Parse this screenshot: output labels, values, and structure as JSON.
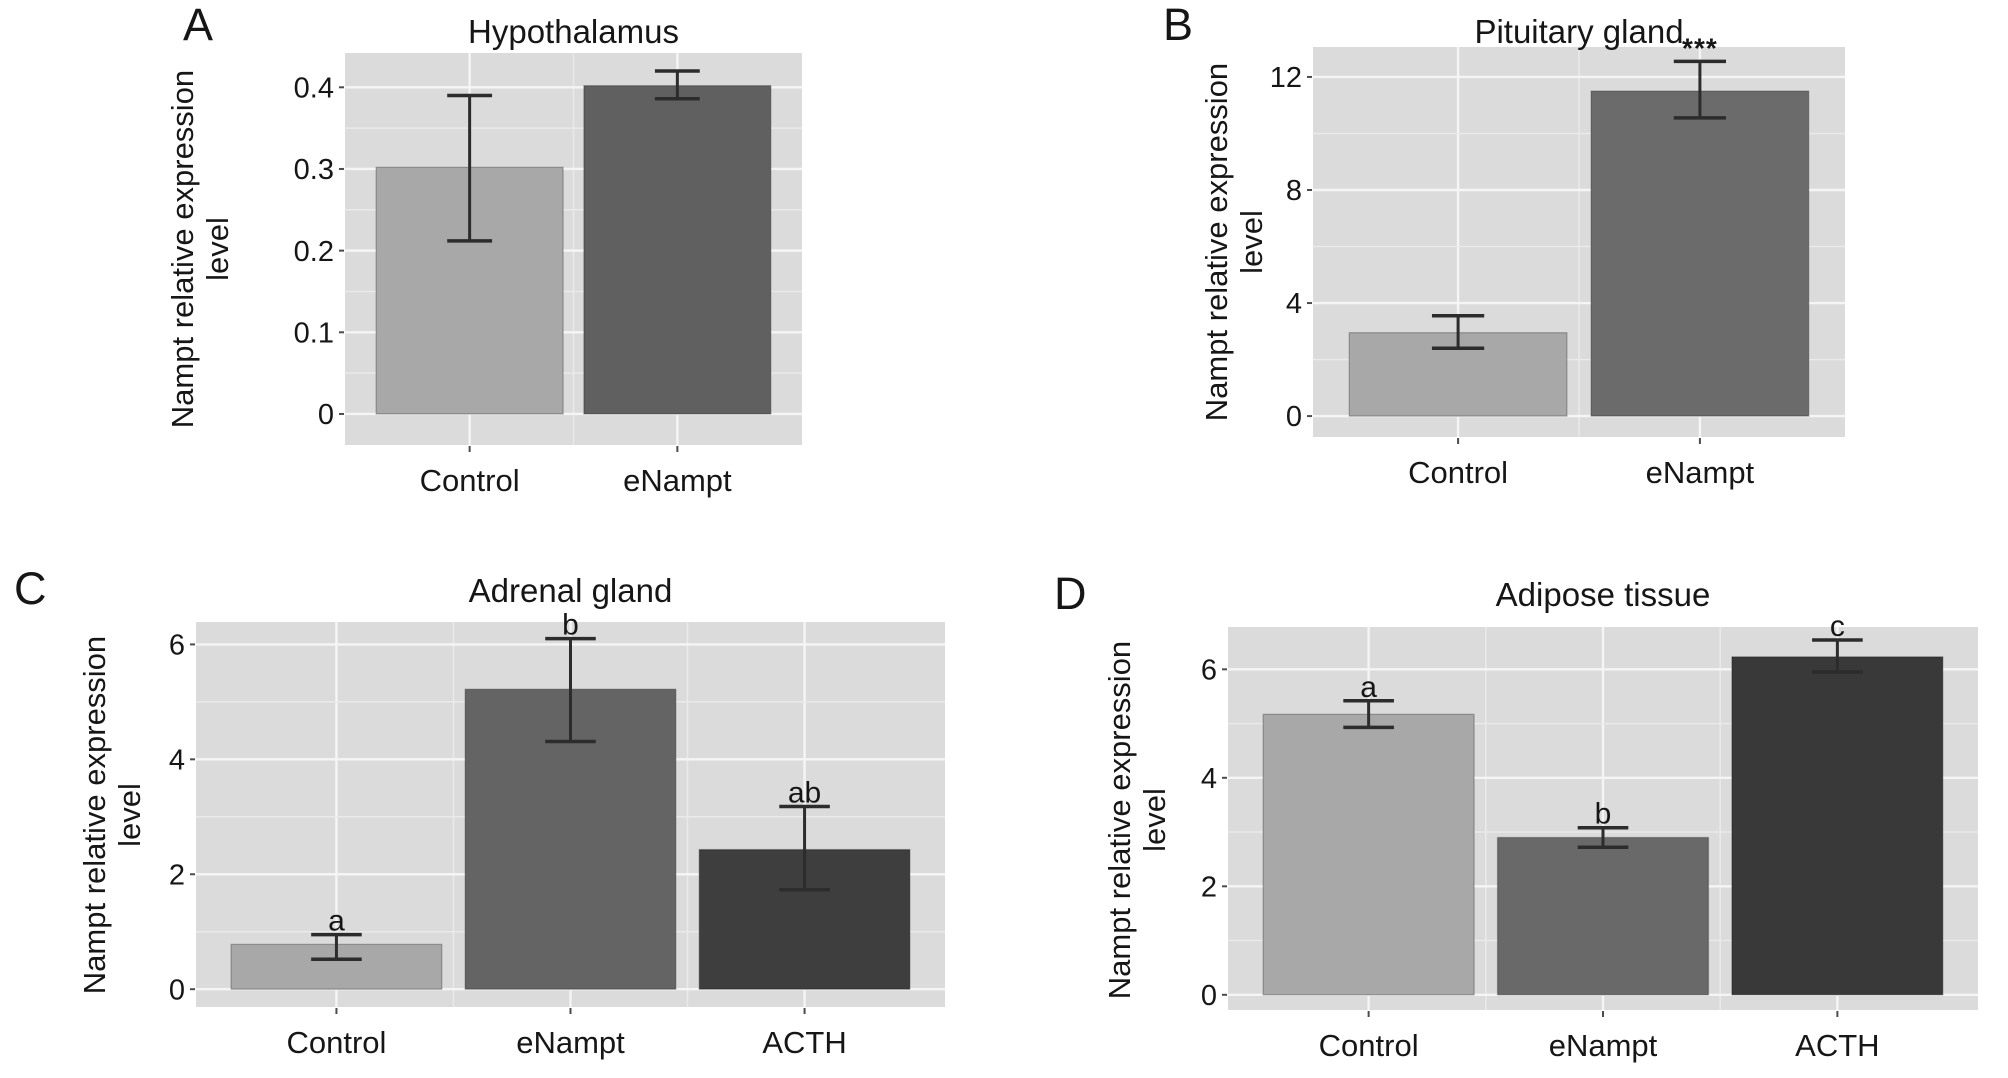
{
  "figure": {
    "ylabel_line1": "Nampt relative expression",
    "ylabel_line2": "level"
  },
  "colors": {
    "page_background": "#ffffff",
    "plot_background": "#dbdbdb",
    "grid_major": "#f5f5f5",
    "grid_minor": "#eaeaea",
    "bar_outline": "rgba(0,0,0,0.25)",
    "error_bar": "#2c2c2c",
    "tick_mark": "#4c4c4c",
    "text": "#161616"
  },
  "chart_data": [
    {
      "panel_label": "A",
      "type": "bar",
      "title": "Hypothalamus",
      "xlabel": "",
      "ylabel": "Nampt relative expression level",
      "categories": [
        "Control",
        "eNampt"
      ],
      "values": [
        0.302,
        0.402
      ],
      "error_low": [
        0.212,
        0.386
      ],
      "error_high": [
        0.39,
        0.42
      ],
      "annotations": [
        "",
        ""
      ],
      "bar_colors": [
        "#a8a8a8",
        "#606060"
      ],
      "yticks": [
        0,
        0.1,
        0.2,
        0.3,
        0.4
      ],
      "ytick_labels": [
        "0",
        "0.1",
        "0.2",
        "0.3",
        "0.4"
      ],
      "yminor": [
        0.05,
        0.15,
        0.25,
        0.35
      ],
      "ylim": [
        -0.038,
        0.442
      ],
      "grid": true,
      "legend": false
    },
    {
      "panel_label": "B",
      "type": "bar",
      "title": "Pituitary gland",
      "xlabel": "",
      "ylabel": "Nampt relative expression level",
      "categories": [
        "Control",
        "eNampt"
      ],
      "values": [
        2.95,
        11.5
      ],
      "error_low": [
        2.4,
        10.55
      ],
      "error_high": [
        3.55,
        12.55
      ],
      "annotations": [
        "",
        "***"
      ],
      "bar_colors": [
        "#a8a8a8",
        "#6b6b6b"
      ],
      "yticks": [
        0,
        4,
        8,
        12
      ],
      "ytick_labels": [
        "0",
        "4",
        "8",
        "12"
      ],
      "yminor": [
        2,
        6,
        10
      ],
      "ylim": [
        -0.74,
        13.06
      ],
      "grid": true,
      "legend": false
    },
    {
      "panel_label": "C",
      "type": "bar",
      "title": "Adrenal gland",
      "xlabel": "",
      "ylabel": "Nampt relative expression level",
      "categories": [
        "Control",
        "eNampt",
        "ACTH"
      ],
      "values": [
        0.78,
        5.22,
        2.43
      ],
      "error_low": [
        0.52,
        4.31,
        1.73
      ],
      "error_high": [
        0.95,
        6.1,
        3.18
      ],
      "annotations": [
        "a",
        "b",
        "ab"
      ],
      "bar_colors": [
        "#a8a8a8",
        "#646464",
        "#3e3e3e"
      ],
      "yticks": [
        0,
        2,
        4,
        6
      ],
      "ytick_labels": [
        "0",
        "2",
        "4",
        "6"
      ],
      "yminor": [
        1,
        3,
        5
      ],
      "ylim": [
        -0.31,
        6.39
      ],
      "grid": true,
      "legend": false
    },
    {
      "panel_label": "D",
      "type": "bar",
      "title": "Adipose tissue",
      "xlabel": "",
      "ylabel": "Nampt relative expression level",
      "categories": [
        "Control",
        "eNampt",
        "ACTH"
      ],
      "values": [
        5.17,
        2.9,
        6.23
      ],
      "error_low": [
        4.93,
        2.72,
        5.95
      ],
      "error_high": [
        5.42,
        3.08,
        6.54
      ],
      "annotations": [
        "a",
        "b",
        "c"
      ],
      "bar_colors": [
        "#a8a8a8",
        "#696969",
        "#393939"
      ],
      "yticks": [
        0,
        2,
        4,
        6
      ],
      "ytick_labels": [
        "0",
        "2",
        "4",
        "6"
      ],
      "yminor": [
        1,
        3,
        5
      ],
      "ylim": [
        -0.28,
        6.78
      ],
      "grid": true,
      "legend": false
    }
  ]
}
